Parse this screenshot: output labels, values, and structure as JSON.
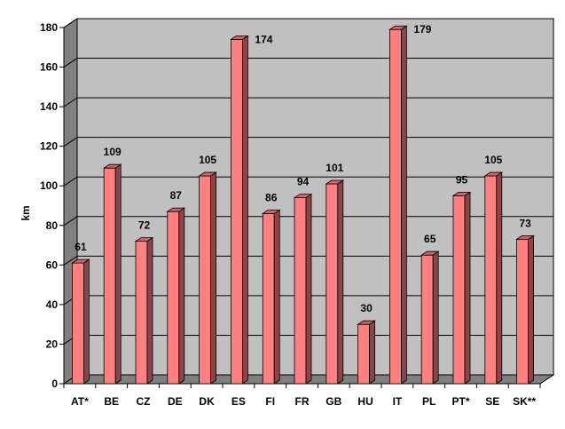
{
  "chart_data": {
    "type": "bar",
    "ylabel": "km",
    "ylim": [
      0,
      180
    ],
    "yticks": [
      0,
      20,
      40,
      60,
      80,
      100,
      120,
      140,
      160,
      180
    ],
    "grid": true,
    "categories": [
      "AT*",
      "BE",
      "CZ",
      "DE",
      "DK",
      "ES",
      "FI",
      "FR",
      "GB",
      "HU",
      "IT",
      "PL",
      "PT*",
      "SE",
      "SK**"
    ],
    "values": [
      61,
      109,
      72,
      87,
      105,
      174,
      86,
      94,
      101,
      30,
      179,
      65,
      95,
      105,
      73
    ],
    "colors": {
      "bar_front": "#ff8080",
      "bar_side": "#8b4448",
      "bar_top": "#c8686c",
      "back_wall": "#c0c0c0",
      "side_wall": "#808080",
      "floor": "#808080"
    }
  }
}
